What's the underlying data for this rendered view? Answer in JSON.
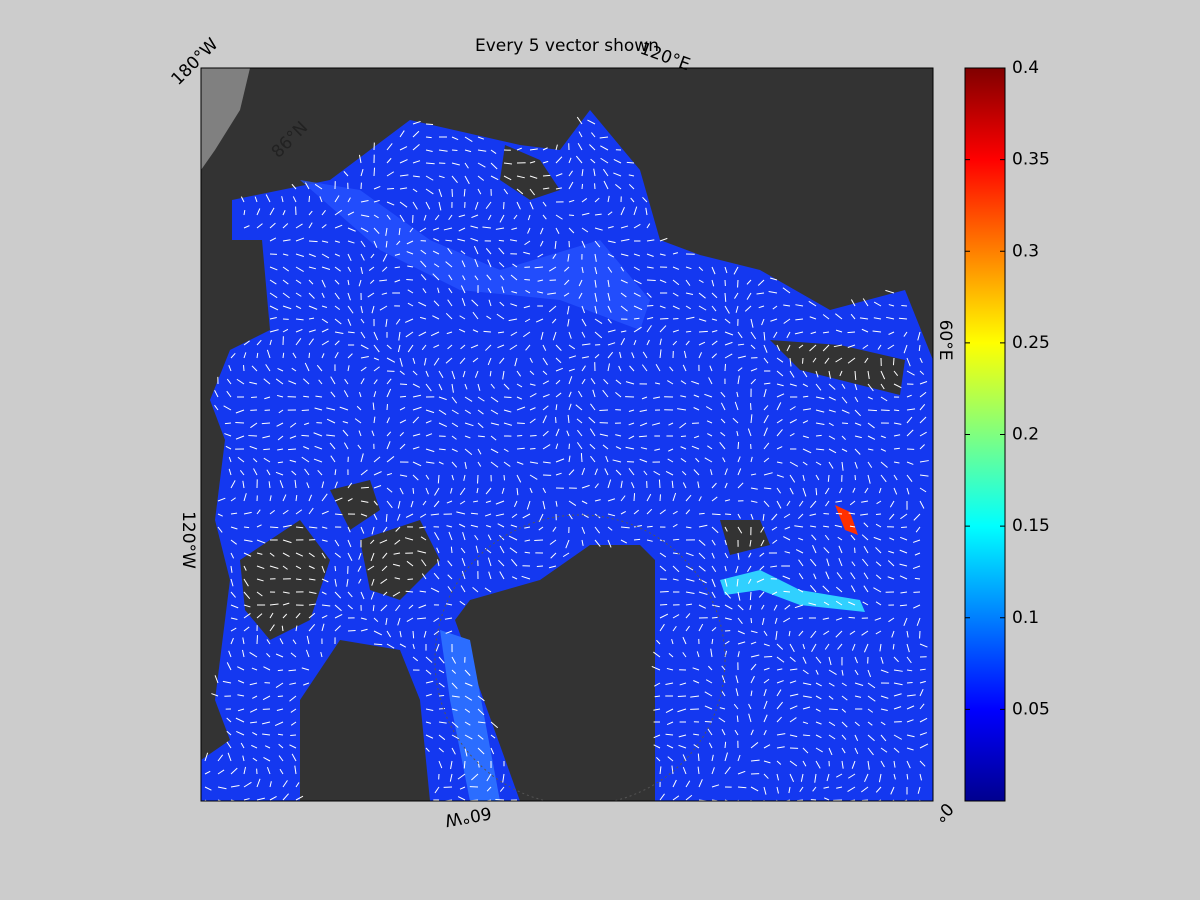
{
  "title": "Every 5 vector shown",
  "map": {
    "longitude_labels": [
      "180°W",
      "120°E",
      "60°E",
      "0°",
      "60°W",
      "120°W"
    ],
    "latitude_labels": [
      "86°N"
    ]
  },
  "colorbar": {
    "colormap": "jet",
    "range": [
      0,
      0.4
    ],
    "ticks": [
      0.05,
      0.1,
      0.15,
      0.2,
      0.25,
      0.3,
      0.35,
      0.4
    ]
  }
}
